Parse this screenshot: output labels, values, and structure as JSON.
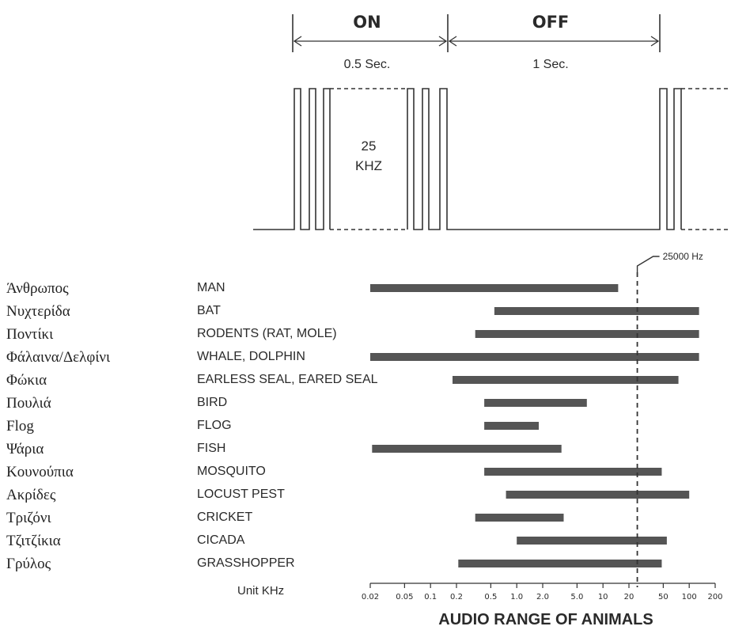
{
  "timing_diagram": {
    "on_label": "ON",
    "off_label": "OFF",
    "on_duration": "0.5 Sec.",
    "off_duration": "1 Sec.",
    "frequency_value": "25",
    "frequency_unit": "KHZ"
  },
  "chart_data": {
    "type": "bar",
    "orientation": "horizontal",
    "scale": "log",
    "title": "AUDIO RANGE OF ANIMALS",
    "unit_label": "Unit KHz",
    "reference_line": {
      "label": "25000 Hz",
      "value_khz": 25,
      "style": "dashed"
    },
    "ticks": [
      {
        "value": 0.02,
        "label": "0.02"
      },
      {
        "value": 0.05,
        "label": "0.05"
      },
      {
        "value": 0.1,
        "label": "0.1"
      },
      {
        "value": 0.2,
        "label": "0.2"
      },
      {
        "value": 0.5,
        "label": "0.5"
      },
      {
        "value": 1,
        "label": "1.0"
      },
      {
        "value": 2,
        "label": "2.0"
      },
      {
        "value": 5,
        "label": "5.0"
      },
      {
        "value": 10,
        "label": "10"
      },
      {
        "value": 20,
        "label": "20"
      },
      {
        "value": 50,
        "label": "50"
      },
      {
        "value": 100,
        "label": "100"
      },
      {
        "value": 200,
        "label": "200"
      }
    ],
    "xlim": [
      0.02,
      200
    ],
    "bar_color": "#555555",
    "categories": [
      {
        "label": "MAN",
        "greek": "Άνθρωπος",
        "min": 0.02,
        "max": 15
      },
      {
        "label": "BAT",
        "greek": "Νυχτερίδα",
        "min": 0.55,
        "max": 130
      },
      {
        "label": "RODENTS (RAT, MOLE)",
        "greek": "Ποντίκι",
        "min": 0.33,
        "max": 130
      },
      {
        "label": "WHALE, DOLPHIN",
        "greek": "Φάλαινα/Δελφίνι",
        "min": 0.02,
        "max": 130
      },
      {
        "label": "EARLESS SEAL, EARED SEAL",
        "greek": "Φώκια",
        "min": 0.18,
        "max": 75
      },
      {
        "label": "BIRD",
        "greek": "Πουλιά",
        "min": 0.42,
        "max": 6.5
      },
      {
        "label": "FLOG",
        "greek": "Flog",
        "min": 0.42,
        "max": 1.8
      },
      {
        "label": "FISH",
        "greek": "Ψάρια",
        "min": 0.021,
        "max": 3.3
      },
      {
        "label": "MOSQUITO",
        "greek": "Κουνούπια",
        "min": 0.42,
        "max": 48
      },
      {
        "label": "LOCUST PEST",
        "greek": "Ακρίδες",
        "min": 0.75,
        "max": 100
      },
      {
        "label": "CRICKET",
        "greek": "Τριζόνι",
        "min": 0.33,
        "max": 3.5
      },
      {
        "label": "CICADA",
        "greek": "Τζιτζίκια",
        "min": 1.0,
        "max": 55
      },
      {
        "label": "GRASSHOPPER",
        "greek": "Γρύλος",
        "min": 0.21,
        "max": 48
      }
    ]
  }
}
